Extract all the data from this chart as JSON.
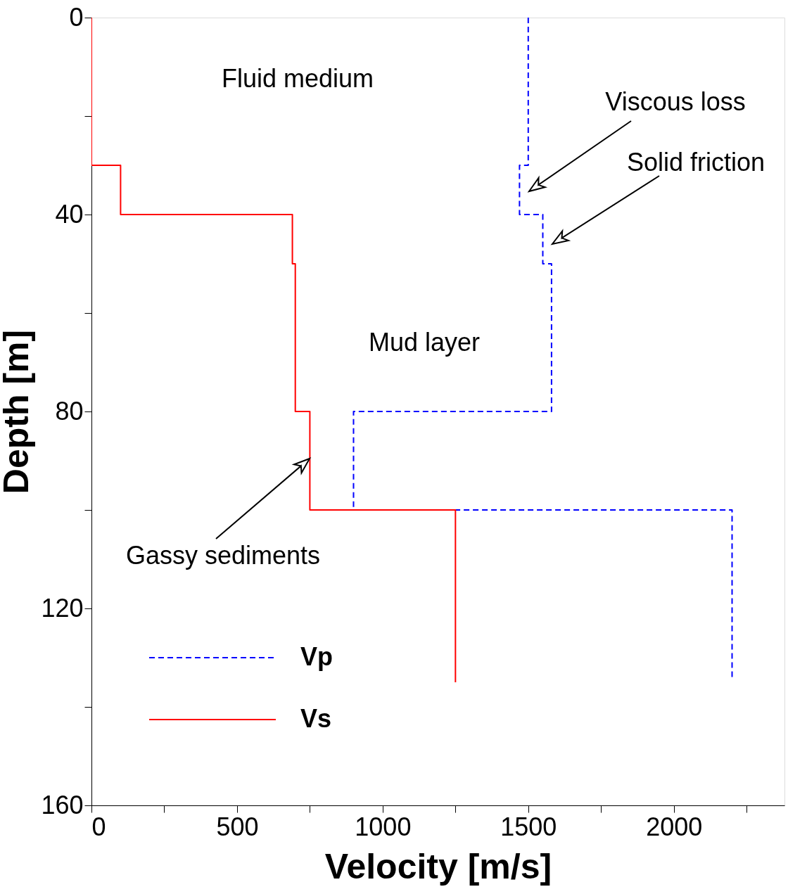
{
  "chart_data": {
    "type": "line",
    "xlabel": "Velocity [m/s]",
    "ylabel": "Depth [m]",
    "xlim": [
      0,
      2380
    ],
    "ylim": [
      160,
      0
    ],
    "xticks": [
      0,
      {
        "value": 250,
        "label": null
      },
      500,
      {
        "value": 750,
        "label": null
      },
      1000,
      {
        "value": 1250,
        "label": null
      },
      1500,
      {
        "value": 1750,
        "label": null
      },
      2000,
      {
        "value": 2250,
        "label": null
      }
    ],
    "yticks": [
      0,
      {
        "value": 20,
        "label": null
      },
      40,
      {
        "value": 60,
        "label": null
      },
      80,
      {
        "value": 100,
        "label": null
      },
      120,
      {
        "value": 140,
        "label": null
      },
      160
    ],
    "legend": "bottom left",
    "series": [
      {
        "name": "Vp",
        "color": "#0000ff",
        "line_style": "dashed",
        "x": [
          1500,
          1500,
          1470,
          1470,
          1550,
          1550,
          1580,
          1580,
          900,
          900,
          2200,
          2200
        ],
        "values": [
          0,
          30,
          30,
          40,
          40,
          50,
          50,
          80,
          80,
          100,
          100,
          134
        ]
      },
      {
        "name": "Vs",
        "color": "#ff0000",
        "line_style": "solid",
        "x": [
          0,
          0,
          100,
          100,
          690,
          690,
          700,
          700,
          750,
          750,
          1250,
          1250
        ],
        "values": [
          0,
          30,
          30,
          40,
          40,
          50,
          50,
          80,
          80,
          100,
          100,
          135
        ]
      }
    ],
    "annotations": [
      "Fluid medium",
      "Viscous loss",
      "Solid friction",
      "Mud layer",
      "Gassy sediments"
    ]
  }
}
